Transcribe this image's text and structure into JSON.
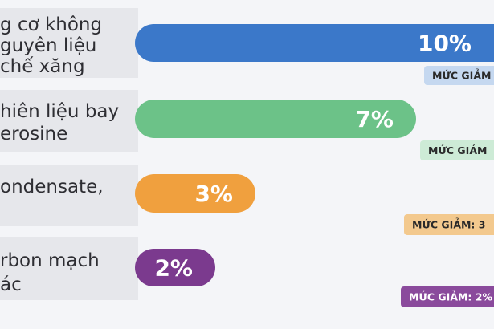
{
  "chart_data": {
    "type": "bar",
    "categories": [
      [
        "g cơ không",
        "guyên liệu",
        "chế xăng"
      ],
      [
        "hiên liệu bay",
        "erosine"
      ],
      [
        "ondensate,"
      ],
      [
        "rbon mạch",
        "ác"
      ]
    ],
    "values": [
      10,
      7,
      3,
      2
    ],
    "value_labels": [
      "10%",
      "7%",
      "3%",
      "2%"
    ],
    "colors": [
      "#3b78c9",
      "#6cc288",
      "#f0a03e",
      "#7b3a8e"
    ],
    "badges": [
      "MỨC GIẢM",
      "MỨC GIẢM",
      "MỨC GIẢM: 3",
      "MỨC GIẢM: 2%"
    ],
    "badge_colors": [
      "#c5d8f0",
      "#cdebd6",
      "#f3c98e",
      "#8a4a9c"
    ]
  }
}
